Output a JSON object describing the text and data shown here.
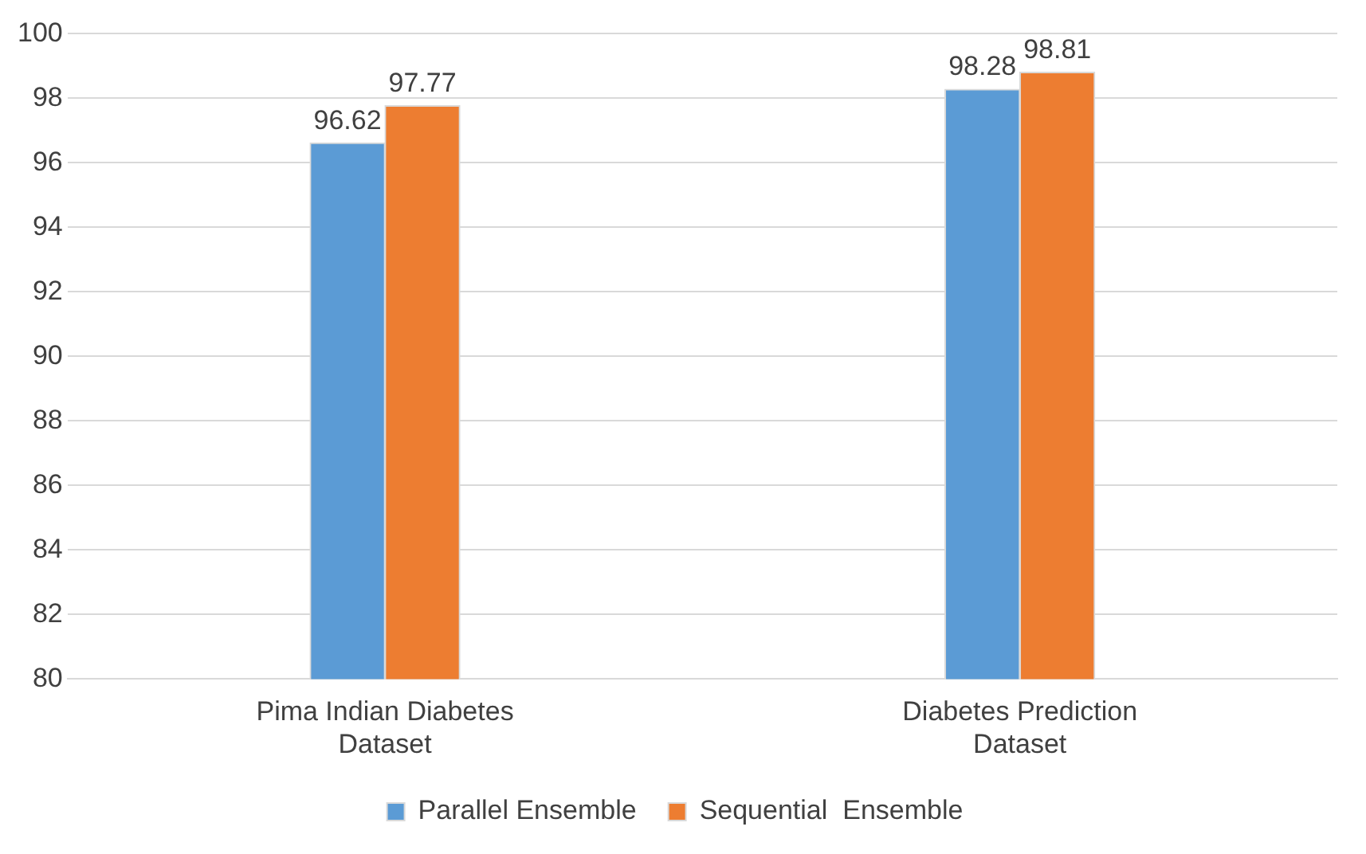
{
  "chart_data": {
    "type": "bar",
    "categories": [
      "Pima Indian Diabetes Dataset",
      "Diabetes Prediction Dataset"
    ],
    "series": [
      {
        "name": "Parallel Ensemble",
        "color": "#5b9bd5",
        "values": [
          96.62,
          98.28
        ]
      },
      {
        "name": "Sequential  Ensemble",
        "color": "#ed7d31",
        "values": [
          97.77,
          98.81
        ]
      }
    ],
    "ylim": [
      80,
      100
    ],
    "yticks": [
      80,
      82,
      84,
      86,
      88,
      90,
      92,
      94,
      96,
      98,
      100
    ],
    "grid": "y",
    "legend": "bottom",
    "data_labels": true
  }
}
